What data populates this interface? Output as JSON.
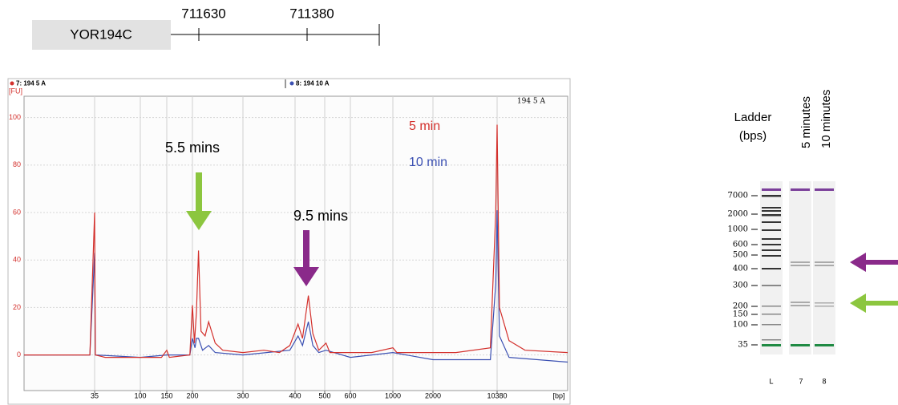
{
  "gene": {
    "name": "YOR194C",
    "coordinates": [
      "711630",
      "711380"
    ]
  },
  "chart_data": {
    "type": "line",
    "header": [
      "7: 194 5 A",
      "8: 194 10 A"
    ],
    "sample_label": "194 5 A",
    "y_label": "[FU]",
    "x_label": "[bp]",
    "xlim": [
      20,
      17000
    ],
    "xticks": [
      35,
      100,
      150,
      200,
      300,
      400,
      500,
      600,
      1000,
      2000,
      10380
    ],
    "ylim": [
      -15,
      109
    ],
    "yticks": [
      0,
      20,
      40,
      60,
      80,
      100
    ],
    "grid": true,
    "annotations": [
      "5.5 mins",
      "9.5 mins"
    ],
    "series": [
      {
        "name": "5 min",
        "color": "#d3302c",
        "x": [
          20,
          34,
          35,
          36,
          50,
          100,
          140,
          150,
          155,
          195,
          200,
          204,
          208,
          212,
          217,
          225,
          232,
          245,
          260,
          300,
          340,
          370,
          390,
          410,
          425,
          445,
          460,
          480,
          505,
          520,
          600,
          800,
          1000,
          1100,
          2000,
          5000,
          9500,
          10200,
          10380,
          10600,
          11500,
          13000,
          17000
        ],
        "values": [
          0,
          0,
          60,
          0,
          -1,
          -1,
          -1,
          2,
          -1,
          0,
          21,
          5,
          18,
          44,
          10,
          8,
          14,
          5,
          2,
          1,
          2,
          1,
          4,
          13,
          7,
          25,
          9,
          2,
          5,
          1,
          1,
          1,
          3,
          1,
          1,
          1,
          3,
          60,
          97,
          20,
          6,
          2,
          1
        ]
      },
      {
        "name": "10 min",
        "color": "#3b50b2",
        "x": [
          20,
          34,
          35,
          36,
          100,
          150,
          195,
          200,
          205,
          208,
          212,
          220,
          232,
          245,
          300,
          390,
          410,
          425,
          445,
          460,
          480,
          505,
          600,
          1000,
          2000,
          9500,
          10200,
          10380,
          10600,
          11500,
          17000
        ],
        "values": [
          0,
          0,
          43,
          0,
          -1,
          0,
          0,
          7,
          3,
          7,
          7,
          2,
          4,
          1,
          0,
          2,
          8,
          4,
          14,
          4,
          1,
          2,
          -1,
          1,
          -2,
          -2,
          30,
          61,
          8,
          -1,
          -3
        ]
      }
    ]
  },
  "gel": {
    "title": [
      "Ladder",
      "(bps)"
    ],
    "lane_titles": [
      "5 minutes",
      "10 minutes"
    ],
    "sizes": [
      "7000",
      "2000",
      "1000",
      "600",
      "500",
      "400",
      "300",
      "200",
      "150",
      "100",
      "35"
    ],
    "lanes": [
      "L",
      "7",
      "8"
    ]
  }
}
